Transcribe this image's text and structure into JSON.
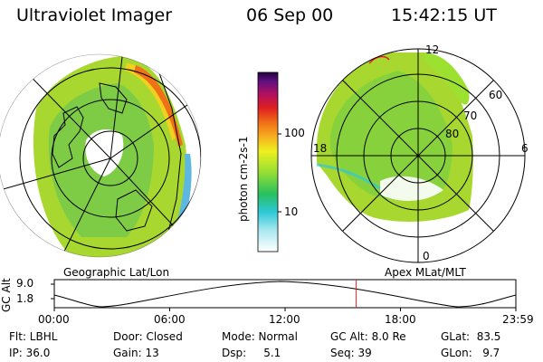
{
  "header": {
    "instrument": "Ultraviolet Imager",
    "date": "06 Sep 00",
    "time": "15:42:15 UT"
  },
  "colorbar": {
    "unit_label": "photon cm-2s-1",
    "tick_labels": [
      "100",
      "10"
    ]
  },
  "left_panel": {
    "caption": "Geographic Lat/Lon"
  },
  "right_panel": {
    "caption": "Apex MLat/MLT",
    "mlt_labels": {
      "top": "12",
      "bottom": "0",
      "left": "18",
      "right": "6"
    },
    "mlat_labels": [
      "60",
      "70",
      "80"
    ]
  },
  "altitude_plot": {
    "ylabel": "GC Alt",
    "y_ticks": [
      "9.0",
      "1.8"
    ],
    "x_ticks": [
      "00:00",
      "06:00",
      "12:00",
      "18:00",
      "23:59"
    ],
    "marker_time_hours": 15.7
  },
  "status": {
    "flt": "Flt: LBHL",
    "door": "Door: Closed",
    "mode": "Mode: Normal",
    "gc_alt": "GC Alt: 8.0 Re",
    "glat": "GLat:  83.5",
    "ip": "IP: 36.0",
    "gain": "Gain: 13",
    "dsp": "Dsp:     5.1",
    "seq": "Seq: 39",
    "glon": "GLon:   9.7"
  }
}
